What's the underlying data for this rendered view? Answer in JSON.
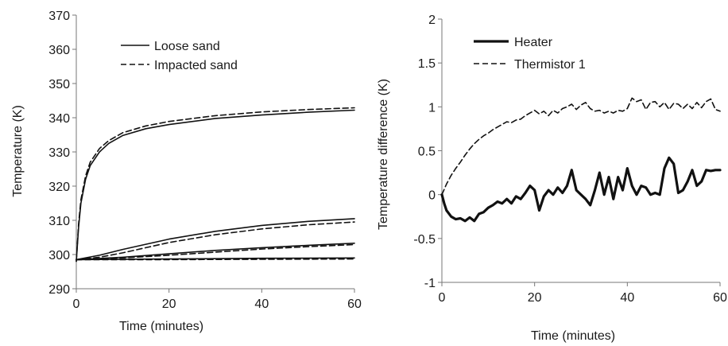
{
  "chart_data": [
    {
      "type": "line",
      "xlabel": "Time (minutes)",
      "ylabel": "Temperature (K)",
      "xlim": [
        0,
        60
      ],
      "ylim": [
        290,
        370
      ],
      "xticks": [
        "0",
        "20",
        "40",
        "60"
      ],
      "yticks": [
        "290",
        "300",
        "310",
        "320",
        "330",
        "340",
        "350",
        "360",
        "370"
      ],
      "legend": {
        "placement": "top-center",
        "entries": [
          {
            "label": "Loose sand",
            "style": "solid"
          },
          {
            "label": "Impacted sand",
            "style": "dashed"
          }
        ]
      },
      "series": [
        {
          "name": "Loose sand",
          "style": "solid",
          "x": [
            0,
            0.5,
            1,
            2,
            3,
            5,
            7,
            10,
            15,
            20,
            30,
            40,
            50,
            60
          ],
          "y": [
            298,
            308,
            315,
            322,
            326,
            330,
            332.5,
            334.8,
            336.8,
            338,
            339.8,
            340.8,
            341.6,
            342.2
          ]
        },
        {
          "name": "Impacted sand",
          "style": "dashed",
          "x": [
            0,
            0.5,
            1,
            2,
            3,
            5,
            7,
            10,
            15,
            20,
            30,
            40,
            50,
            60
          ],
          "y": [
            298,
            309,
            316,
            323,
            327,
            331,
            333.3,
            335.6,
            337.6,
            338.9,
            340.6,
            341.7,
            342.4,
            342.9
          ]
        },
        {
          "style": "solid",
          "x": [
            0,
            5,
            10,
            15,
            20,
            30,
            40,
            50,
            60
          ],
          "y": [
            298.5,
            299.8,
            301.5,
            303,
            304.5,
            306.8,
            308.5,
            309.7,
            310.5
          ]
        },
        {
          "style": "dashed",
          "x": [
            0,
            5,
            10,
            15,
            20,
            30,
            40,
            50,
            60
          ],
          "y": [
            298.5,
            299.2,
            300.5,
            302,
            303.5,
            305.8,
            307.5,
            308.7,
            309.5
          ]
        },
        {
          "style": "solid",
          "x": [
            0,
            10,
            20,
            30,
            40,
            50,
            60
          ],
          "y": [
            298.5,
            299.2,
            300.2,
            301.2,
            302,
            302.7,
            303.3
          ]
        },
        {
          "style": "dashed",
          "x": [
            0,
            10,
            20,
            30,
            40,
            50,
            60
          ],
          "y": [
            298.5,
            299,
            299.8,
            300.7,
            301.6,
            302.3,
            302.9
          ]
        },
        {
          "style": "solid",
          "x": [
            0,
            20,
            40,
            60
          ],
          "y": [
            298.5,
            298.7,
            298.9,
            299
          ]
        },
        {
          "style": "dashed",
          "x": [
            0,
            20,
            40,
            60
          ],
          "y": [
            298.5,
            298.5,
            298.6,
            298.7
          ]
        }
      ]
    },
    {
      "type": "line",
      "xlabel": "Time (minutes)",
      "ylabel": "Temperature difference (K)",
      "xlim": [
        0,
        60
      ],
      "ylim": [
        -1,
        2
      ],
      "xticks": [
        "0",
        "20",
        "40",
        "60"
      ],
      "yticks": [
        "-1",
        "-0.5",
        "0",
        "0.5",
        "1",
        "1.5",
        "2"
      ],
      "legend": {
        "placement": "top-left",
        "entries": [
          {
            "label": "Heater",
            "style": "solid-thick"
          },
          {
            "label": "Thermistor 1",
            "style": "dashed"
          }
        ]
      },
      "series": [
        {
          "name": "Heater",
          "style": "solid-thick",
          "x": [
            0,
            0.5,
            1,
            2,
            3,
            4,
            5,
            6,
            7,
            8,
            9,
            10,
            11,
            12,
            13,
            14,
            15,
            16,
            17,
            18,
            19,
            20,
            21,
            22,
            23,
            24,
            25,
            26,
            27,
            28,
            29,
            30,
            31,
            32,
            33,
            34,
            35,
            36,
            37,
            38,
            39,
            40,
            41,
            42,
            43,
            44,
            45,
            46,
            47,
            48,
            49,
            50,
            51,
            52,
            53,
            54,
            55,
            56,
            57,
            58,
            59,
            60
          ],
          "y": [
            0,
            -0.1,
            -0.18,
            -0.25,
            -0.28,
            -0.27,
            -0.3,
            -0.26,
            -0.3,
            -0.22,
            -0.2,
            -0.15,
            -0.12,
            -0.08,
            -0.1,
            -0.05,
            -0.1,
            -0.02,
            -0.05,
            0.02,
            0.1,
            0.05,
            -0.18,
            -0.02,
            0.05,
            0.0,
            0.08,
            0.02,
            0.1,
            0.28,
            0.05,
            0.0,
            -0.05,
            -0.12,
            0.05,
            0.25,
            0.0,
            0.2,
            -0.05,
            0.2,
            0.05,
            0.3,
            0.1,
            0.0,
            0.1,
            0.08,
            0.0,
            0.02,
            0.0,
            0.3,
            0.42,
            0.35,
            0.02,
            0.05,
            0.15,
            0.28,
            0.1,
            0.15,
            0.28,
            0.27,
            0.28,
            0.28
          ]
        },
        {
          "name": "Thermistor 1",
          "style": "dashed",
          "x": [
            0,
            1,
            2,
            3,
            4,
            5,
            6,
            7,
            8,
            9,
            10,
            11,
            12,
            13,
            14,
            15,
            16,
            17,
            18,
            19,
            20,
            21,
            22,
            23,
            24,
            25,
            26,
            27,
            28,
            29,
            30,
            31,
            32,
            33,
            34,
            35,
            36,
            37,
            38,
            39,
            40,
            41,
            42,
            43,
            44,
            45,
            46,
            47,
            48,
            49,
            50,
            51,
            52,
            53,
            54,
            55,
            56,
            57,
            58,
            59,
            60
          ],
          "y": [
            0.0,
            0.12,
            0.22,
            0.3,
            0.37,
            0.45,
            0.52,
            0.58,
            0.63,
            0.67,
            0.7,
            0.74,
            0.77,
            0.8,
            0.83,
            0.82,
            0.85,
            0.86,
            0.9,
            0.93,
            0.96,
            0.92,
            0.95,
            0.9,
            0.96,
            0.93,
            0.98,
            1.0,
            1.03,
            0.97,
            1.02,
            1.05,
            0.98,
            0.95,
            0.96,
            0.93,
            0.95,
            0.93,
            0.96,
            0.95,
            0.98,
            1.1,
            1.06,
            1.08,
            0.97,
            1.05,
            1.06,
            1.0,
            1.05,
            0.97,
            1.04,
            1.03,
            0.98,
            1.03,
            0.98,
            1.05,
            0.99,
            1.06,
            1.09,
            0.97,
            0.95
          ]
        }
      ]
    }
  ]
}
